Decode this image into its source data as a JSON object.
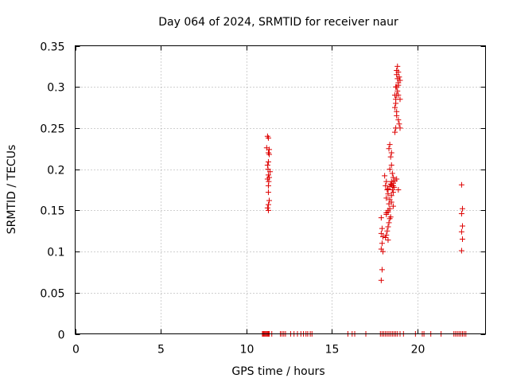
{
  "chart_data": {
    "type": "scatter",
    "title": "Day 064 of 2024, SRMTID for receiver naur",
    "xlabel": "GPS time / hours",
    "ylabel": "SRMTID / TECUs",
    "xlim": [
      0,
      24
    ],
    "ylim": [
      0,
      0.35
    ],
    "xticks": [
      0,
      5,
      10,
      15,
      20
    ],
    "xtick_labels": [
      "0",
      "5",
      "10",
      "15",
      "20"
    ],
    "yticks": [
      0,
      0.05,
      0.1,
      0.15,
      0.2,
      0.25,
      0.3,
      0.35
    ],
    "ytick_labels": [
      "0",
      "0.05",
      "0.1",
      "0.15",
      "0.2",
      "0.25",
      "0.3",
      "0.35"
    ],
    "grid": true,
    "marker": "+",
    "color": "#dd0000",
    "series": [
      {
        "name": "SRMTID",
        "x": [
          11.25,
          11.3,
          11.2,
          11.35,
          11.3,
          11.25,
          11.4,
          11.3,
          11.35,
          11.25,
          11.3,
          11.3,
          11.35,
          11.3,
          11.25,
          11.3,
          11.35,
          11.3,
          11.28,
          11.32,
          17.9,
          17.95,
          17.9,
          18.0,
          17.95,
          17.9,
          18.0,
          17.95,
          17.9,
          18.1,
          18.2,
          18.15,
          18.25,
          18.3,
          18.2,
          18.35,
          18.4,
          18.3,
          18.2,
          18.45,
          18.4,
          18.35,
          18.3,
          18.25,
          18.2,
          18.15,
          18.3,
          18.35,
          18.4,
          18.5,
          18.45,
          18.5,
          18.4,
          18.55,
          18.6,
          18.5,
          18.45,
          18.6,
          18.55,
          18.5,
          18.6,
          18.7,
          18.75,
          18.8,
          18.7,
          18.75,
          18.8,
          18.85,
          18.8,
          18.9,
          18.85,
          18.8,
          18.9,
          18.95,
          19.0,
          18.9,
          18.85,
          18.8,
          18.75,
          18.7,
          18.75,
          18.8,
          18.9,
          18.95,
          19.0,
          18.9,
          18.65,
          18.6,
          18.5,
          18.4,
          18.3,
          18.2,
          18.3,
          18.4,
          18.5,
          18.6,
          18.7,
          18.8,
          18.9,
          19.0,
          22.6,
          22.65,
          22.6,
          22.65,
          22.6,
          22.65,
          22.6,
          10.95,
          11.0,
          11.05,
          11.1,
          11.15,
          11.2,
          11.25,
          11.3,
          11.35,
          11.5,
          12.0,
          12.1,
          12.2,
          12.3,
          12.6,
          12.8,
          13.0,
          13.2,
          13.35,
          13.5,
          13.6,
          13.75,
          13.85,
          15.95,
          16.2,
          16.35,
          17.0,
          17.85,
          17.95,
          18.05,
          18.15,
          18.25,
          18.35,
          18.45,
          18.55,
          18.65,
          18.75,
          18.85,
          19.0,
          19.2,
          19.9,
          20.3,
          20.4,
          20.8,
          21.4,
          22.15,
          22.25,
          22.35,
          22.45,
          22.55,
          22.65,
          22.75,
          22.85
        ],
        "y": [
          0.24,
          0.238,
          0.226,
          0.224,
          0.22,
          0.205,
          0.197,
          0.193,
          0.19,
          0.188,
          0.18,
          0.172,
          0.162,
          0.157,
          0.153,
          0.15,
          0.218,
          0.209,
          0.2,
          0.185,
          0.141,
          0.128,
          0.122,
          0.118,
          0.11,
          0.103,
          0.1,
          0.078,
          0.065,
          0.192,
          0.185,
          0.18,
          0.175,
          0.17,
          0.165,
          0.158,
          0.152,
          0.15,
          0.147,
          0.142,
          0.14,
          0.135,
          0.13,
          0.125,
          0.12,
          0.117,
          0.114,
          0.225,
          0.23,
          0.22,
          0.215,
          0.205,
          0.2,
          0.195,
          0.19,
          0.185,
          0.182,
          0.18,
          0.175,
          0.16,
          0.155,
          0.245,
          0.25,
          0.265,
          0.275,
          0.28,
          0.29,
          0.295,
          0.3,
          0.305,
          0.31,
          0.315,
          0.318,
          0.312,
          0.308,
          0.302,
          0.325,
          0.32,
          0.3,
          0.29,
          0.285,
          0.27,
          0.26,
          0.255,
          0.25,
          0.175,
          0.178,
          0.172,
          0.168,
          0.163,
          0.148,
          0.145,
          0.176,
          0.179,
          0.181,
          0.183,
          0.186,
          0.188,
          0.29,
          0.285,
          0.181,
          0.152,
          0.146,
          0.131,
          0.124,
          0.115,
          0.101,
          0,
          0,
          0,
          0,
          0,
          0,
          0,
          0,
          0,
          0,
          0,
          0,
          0,
          0,
          0,
          0,
          0,
          0,
          0,
          0,
          0,
          0,
          0,
          0,
          0,
          0,
          0,
          0,
          0,
          0,
          0,
          0,
          0,
          0,
          0,
          0,
          0,
          0,
          0,
          0,
          0,
          0,
          0,
          0,
          0,
          0,
          0,
          0,
          0,
          0,
          0,
          0,
          0
        ]
      }
    ]
  }
}
